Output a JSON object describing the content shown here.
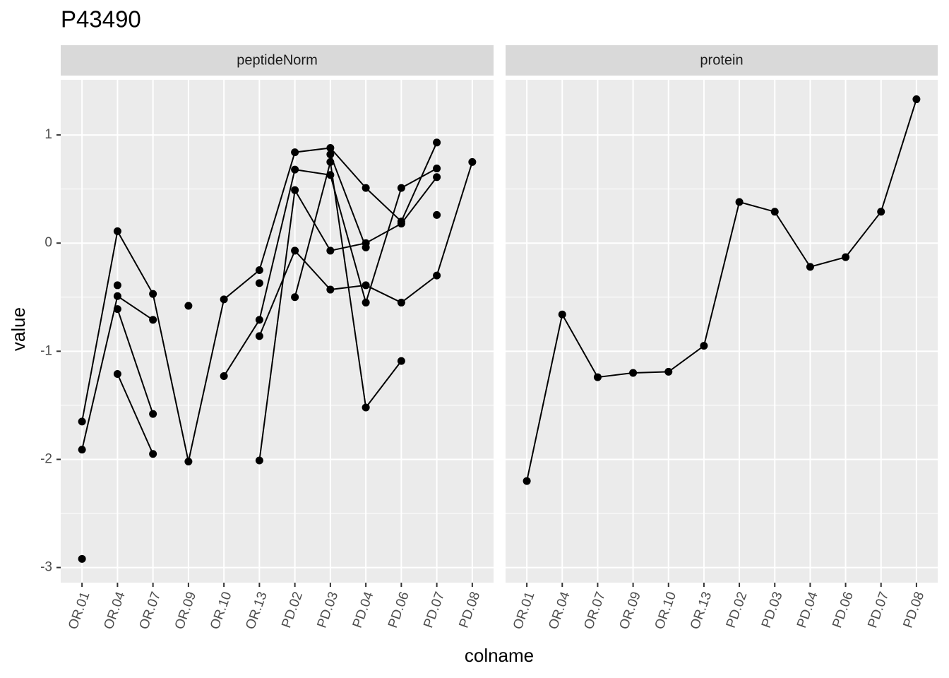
{
  "title": "P43490",
  "x_label": "colname",
  "y_label": "value",
  "chart_data": [
    {
      "type": "line",
      "title": "peptideNorm",
      "color": "#000000",
      "grid": true,
      "categories": [
        "OR.01",
        "OR.04",
        "OR.07",
        "OR.09",
        "OR.10",
        "OR.13",
        "PD.02",
        "PD.03",
        "PD.04",
        "PD.06",
        "PD.07",
        "PD.08"
      ],
      "ylim": [
        -3.14,
        1.51
      ],
      "yticks": [
        -3,
        -2,
        -1,
        0,
        1
      ],
      "series": [
        {
          "values": [
            -1.65,
            0.11,
            -0.47,
            -2.02,
            -0.52,
            -0.25,
            0.84,
            0.88,
            0.51,
            0.2,
            0.93,
            null
          ]
        },
        {
          "values": [
            -1.91,
            -0.49,
            -0.71,
            null,
            null,
            -0.37,
            null,
            0.82,
            -0.04,
            null,
            0.26,
            null
          ]
        },
        {
          "values": [
            null,
            -0.61,
            -1.58,
            null,
            -1.23,
            -0.71,
            0.68,
            0.63,
            -0.55,
            0.51,
            0.69,
            null
          ]
        },
        {
          "values": [
            null,
            -1.21,
            -1.95,
            null,
            null,
            -2.01,
            0.49,
            -0.07,
            0.0,
            0.18,
            0.61,
            null
          ]
        },
        {
          "values": [
            null,
            -0.39,
            null,
            -0.58,
            null,
            -0.86,
            -0.07,
            -0.43,
            -0.39,
            -0.55,
            -0.3,
            0.75
          ]
        },
        {
          "values": [
            -2.92,
            null,
            null,
            null,
            null,
            null,
            -0.5,
            0.75,
            -1.52,
            -1.09,
            null,
            null
          ]
        }
      ]
    },
    {
      "type": "line",
      "title": "protein",
      "color": "#000000",
      "grid": true,
      "categories": [
        "OR.01",
        "OR.04",
        "OR.07",
        "OR.09",
        "OR.10",
        "OR.13",
        "PD.02",
        "PD.03",
        "PD.04",
        "PD.06",
        "PD.07",
        "PD.08"
      ],
      "ylim": [
        -3.14,
        1.51
      ],
      "yticks": [
        -3,
        -2,
        -1,
        0,
        1
      ],
      "series": [
        {
          "values": [
            -2.2,
            -0.66,
            -1.24,
            -1.2,
            -1.19,
            -0.95,
            0.38,
            0.29,
            -0.22,
            -0.13,
            0.29,
            1.33
          ]
        }
      ]
    }
  ]
}
